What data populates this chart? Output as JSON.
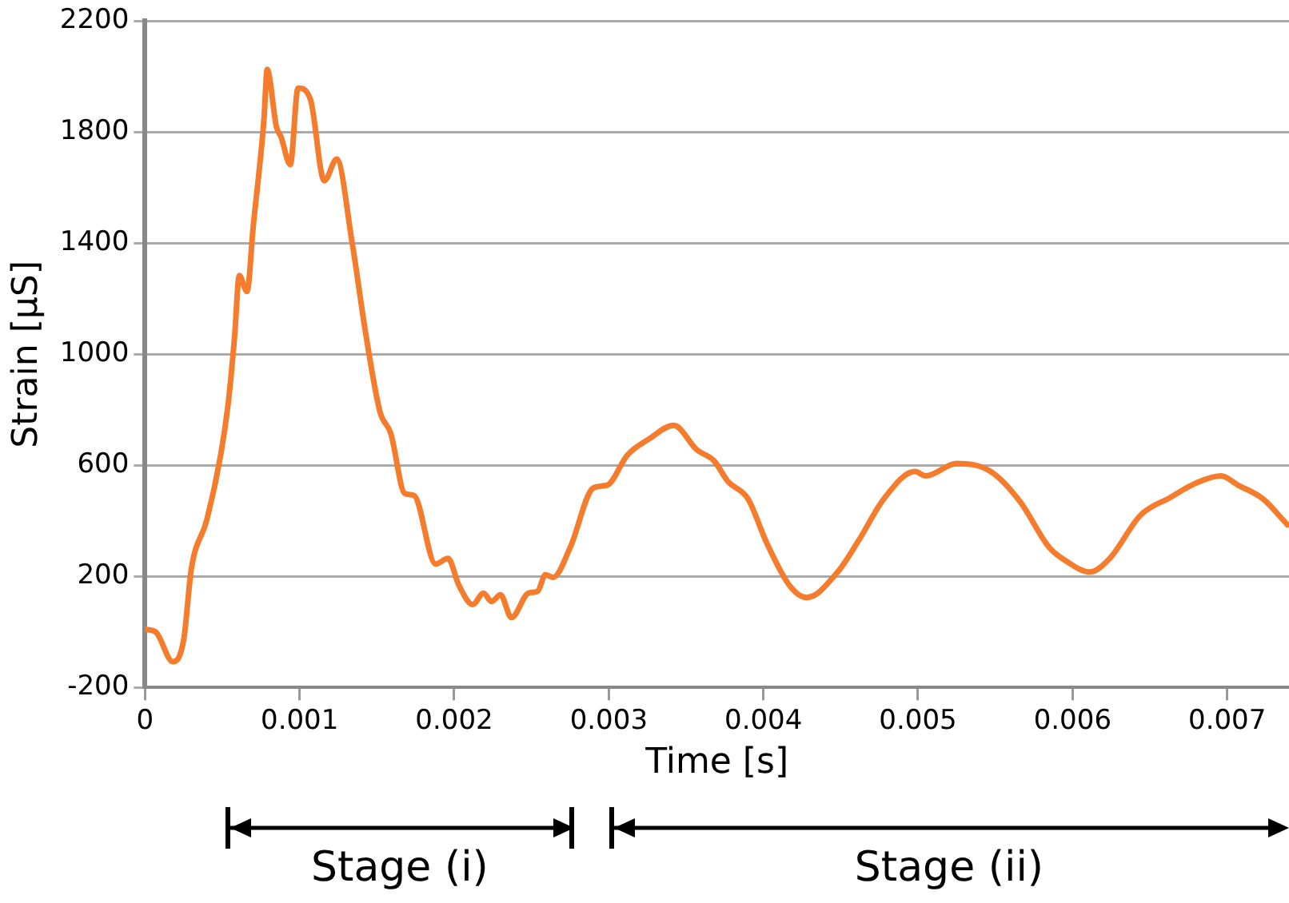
{
  "chart_data": {
    "type": "line",
    "xlabel": "Time [s]",
    "ylabel": "Strain [µS]",
    "x": [
      0,
      7e-05,
      0.00018,
      0.00025,
      0.0003,
      0.0004,
      0.00049,
      0.00054,
      0.00058,
      0.00061,
      0.00066,
      0.0007,
      0.00077,
      0.00079,
      0.00085,
      0.00088,
      0.00094,
      0.00099,
      0.00107,
      0.00116,
      0.00124,
      0.00134,
      0.00143,
      0.00152,
      0.00159,
      0.00168,
      0.00174,
      0.00188,
      0.00196,
      0.00203,
      0.00212,
      0.00219,
      0.00224,
      0.0023,
      0.00237,
      0.00248,
      0.00254,
      0.00259,
      0.00264,
      0.00275,
      0.0029,
      0.00299,
      0.00312,
      0.00326,
      0.00342,
      0.00357,
      0.00368,
      0.00377,
      0.0039,
      0.00402,
      0.00417,
      0.00428,
      0.00448,
      0.00462,
      0.00478,
      0.00498,
      0.00505,
      0.00525,
      0.00547,
      0.00566,
      0.00585,
      0.00596,
      0.00611,
      0.00624,
      0.00644,
      0.00663,
      0.00681,
      0.00696,
      0.00707,
      0.00723,
      0.00739
    ],
    "series": [
      {
        "color": "#f47c2c",
        "values": [
          10,
          0,
          -107,
          -29,
          228,
          404,
          639,
          832,
          1067,
          1284,
          1226,
          1460,
          1850,
          2026,
          1820,
          1783,
          1683,
          1959,
          1918,
          1625,
          1703,
          1401,
          1067,
          793,
          715,
          499,
          492,
          245,
          265,
          169,
          99,
          140,
          110,
          134,
          52,
          140,
          147,
          206,
          197,
          304,
          519,
          529,
          637,
          695,
          744,
          656,
          617,
          543,
          480,
          323,
          167,
          124,
          216,
          333,
          480,
          578,
          562,
          607,
          578,
          470,
          304,
          255,
          216,
          265,
          421,
          484,
          539,
          562,
          529,
          480,
          386
        ]
      }
    ],
    "xlim": [
      0,
      0.0074
    ],
    "xticks": [
      0,
      0.001,
      0.002,
      0.003,
      0.004,
      0.005,
      0.006,
      0.007
    ],
    "ylim": [
      -200,
      2200
    ],
    "yticks": [
      -200,
      200,
      600,
      1000,
      1400,
      1800,
      2200
    ],
    "grid": "y",
    "legend": false,
    "marker": "none",
    "line_style": "solid",
    "annotations": [
      "Stage (i)",
      "Stage (ii)"
    ]
  }
}
